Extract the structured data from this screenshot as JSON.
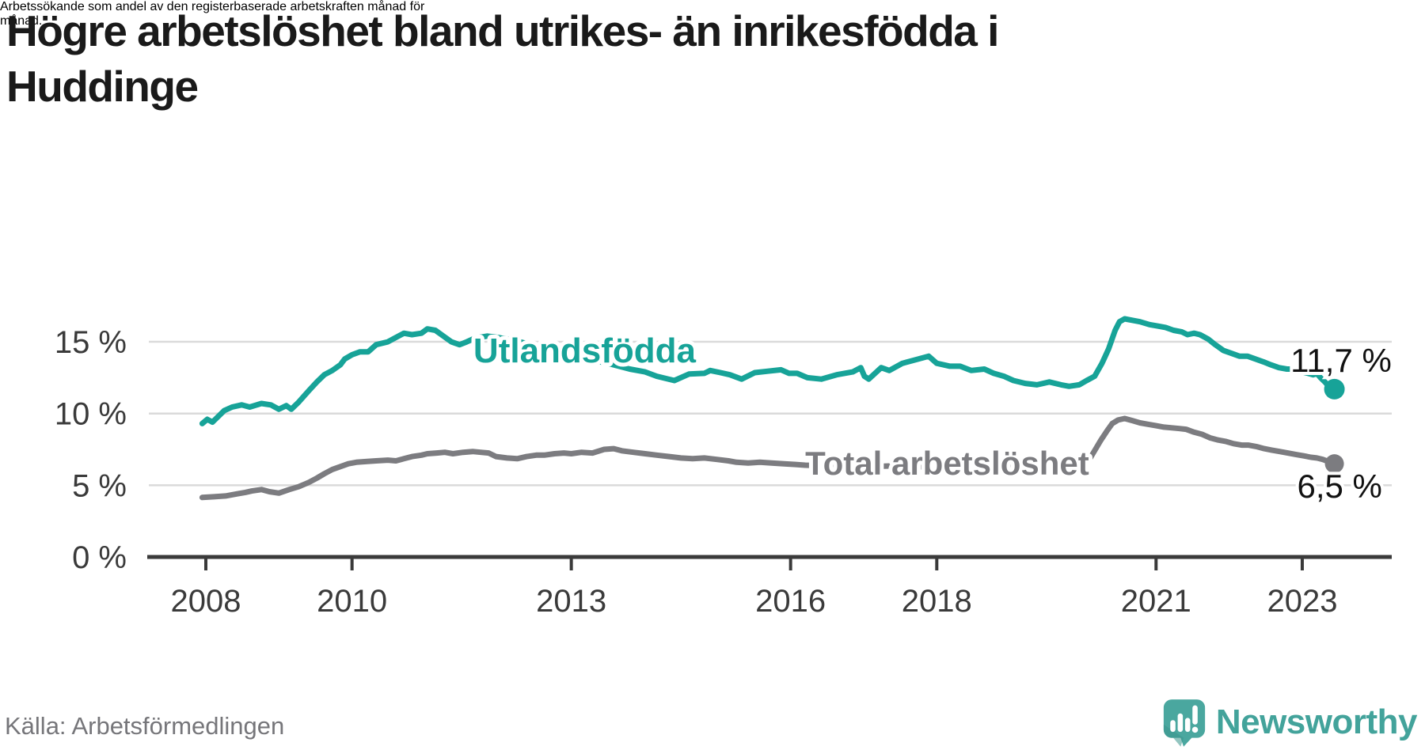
{
  "header": {
    "title_line1": "Högre arbetslöshet bland utrikes- än inrikesfödda i",
    "title_line2": "Huddinge",
    "subtitle_line1": "Arbetssökande som andel av den registerbaserade arbetskraften månad för",
    "subtitle_line2": "månad."
  },
  "footer": {
    "source": "Källa: Arbetsförmedlingen",
    "brand": "Newsworthy"
  },
  "chart_data": {
    "type": "line",
    "title": "Högre arbetslöshet bland utrikes- än inrikesfödda i Huddinge",
    "subtitle": "Arbetssökande som andel av den registerbaserade arbetskraften månad för månad.",
    "grid": "horizontal-only",
    "legend_position": "inline-labels",
    "x_axis": {
      "range": [
        2007.2,
        2024.2
      ],
      "ticks": [
        2008,
        2010,
        2013,
        2016,
        2018,
        2021,
        2023
      ],
      "tick_labels": [
        "2008",
        "2010",
        "2013",
        "2016",
        "2018",
        "2021",
        "2023"
      ]
    },
    "y_axis": {
      "range": [
        0,
        18.6
      ],
      "ticks": [
        0,
        5,
        10,
        15
      ],
      "tick_labels": [
        "0 %",
        "5 %",
        "10 %",
        "15 %"
      ]
    },
    "colors": {
      "utlandsfodda": "#17a398",
      "total": "#7c7c80",
      "axis": "#3a3a3a",
      "grid": "#dadada",
      "value_label": "#111111"
    },
    "series": [
      {
        "name": "Utlandsfödda",
        "color": "#17a398",
        "end_value": 11.7,
        "end_label": "11,7 %",
        "points": [
          [
            2007.95,
            9.3
          ],
          [
            2008.02,
            9.6
          ],
          [
            2008.09,
            9.4
          ],
          [
            2008.25,
            10.2
          ],
          [
            2008.36,
            10.45
          ],
          [
            2008.49,
            10.6
          ],
          [
            2008.6,
            10.45
          ],
          [
            2008.76,
            10.7
          ],
          [
            2008.89,
            10.6
          ],
          [
            2009.0,
            10.3
          ],
          [
            2009.1,
            10.55
          ],
          [
            2009.17,
            10.3
          ],
          [
            2009.27,
            10.8
          ],
          [
            2009.41,
            11.6
          ],
          [
            2009.52,
            12.2
          ],
          [
            2009.62,
            12.7
          ],
          [
            2009.73,
            13.0
          ],
          [
            2009.84,
            13.4
          ],
          [
            2009.9,
            13.8
          ],
          [
            2010.0,
            14.1
          ],
          [
            2010.11,
            14.3
          ],
          [
            2010.22,
            14.3
          ],
          [
            2010.33,
            14.8
          ],
          [
            2010.49,
            15.0
          ],
          [
            2010.6,
            15.3
          ],
          [
            2010.71,
            15.6
          ],
          [
            2010.82,
            15.5
          ],
          [
            2010.95,
            15.6
          ],
          [
            2011.03,
            15.9
          ],
          [
            2011.14,
            15.8
          ],
          [
            2011.25,
            15.4
          ],
          [
            2011.36,
            15.0
          ],
          [
            2011.47,
            14.8
          ],
          [
            2011.57,
            15.0
          ],
          [
            2011.68,
            15.25
          ],
          [
            2011.85,
            15.4
          ],
          [
            2012.0,
            15.3
          ],
          [
            2012.3,
            15.0
          ],
          [
            2012.6,
            14.6
          ],
          [
            2012.9,
            14.2
          ],
          [
            2013.2,
            13.8
          ],
          [
            2013.5,
            13.5
          ],
          [
            2013.8,
            13.1
          ],
          [
            2014.01,
            12.9
          ],
          [
            2014.17,
            12.6
          ],
          [
            2014.41,
            12.3
          ],
          [
            2014.61,
            12.75
          ],
          [
            2014.82,
            12.8
          ],
          [
            2014.9,
            13.0
          ],
          [
            2015.04,
            12.85
          ],
          [
            2015.17,
            12.7
          ],
          [
            2015.33,
            12.4
          ],
          [
            2015.51,
            12.85
          ],
          [
            2015.69,
            12.95
          ],
          [
            2015.87,
            13.05
          ],
          [
            2015.98,
            12.8
          ],
          [
            2016.09,
            12.8
          ],
          [
            2016.23,
            12.5
          ],
          [
            2016.42,
            12.4
          ],
          [
            2016.63,
            12.7
          ],
          [
            2016.85,
            12.9
          ],
          [
            2016.96,
            13.2
          ],
          [
            2017.01,
            12.6
          ],
          [
            2017.07,
            12.4
          ],
          [
            2017.24,
            13.2
          ],
          [
            2017.35,
            13.0
          ],
          [
            2017.53,
            13.5
          ],
          [
            2017.75,
            13.8
          ],
          [
            2017.89,
            14.0
          ],
          [
            2018.0,
            13.5
          ],
          [
            2018.18,
            13.3
          ],
          [
            2018.32,
            13.3
          ],
          [
            2018.47,
            13.0
          ],
          [
            2018.65,
            13.1
          ],
          [
            2018.78,
            12.8
          ],
          [
            2018.92,
            12.6
          ],
          [
            2019.05,
            12.3
          ],
          [
            2019.21,
            12.1
          ],
          [
            2019.37,
            12.0
          ],
          [
            2019.54,
            12.2
          ],
          [
            2019.7,
            12.0
          ],
          [
            2019.81,
            11.9
          ],
          [
            2019.95,
            12.0
          ],
          [
            2020.05,
            12.3
          ],
          [
            2020.16,
            12.6
          ],
          [
            2020.26,
            13.5
          ],
          [
            2020.35,
            14.5
          ],
          [
            2020.44,
            15.8
          ],
          [
            2020.5,
            16.4
          ],
          [
            2020.57,
            16.6
          ],
          [
            2020.68,
            16.5
          ],
          [
            2020.78,
            16.4
          ],
          [
            2020.91,
            16.2
          ],
          [
            2021.02,
            16.1
          ],
          [
            2021.13,
            16.0
          ],
          [
            2021.24,
            15.8
          ],
          [
            2021.35,
            15.7
          ],
          [
            2021.43,
            15.5
          ],
          [
            2021.52,
            15.6
          ],
          [
            2021.6,
            15.5
          ],
          [
            2021.71,
            15.2
          ],
          [
            2021.81,
            14.8
          ],
          [
            2021.92,
            14.4
          ],
          [
            2022.03,
            14.2
          ],
          [
            2022.14,
            14.0
          ],
          [
            2022.25,
            14.0
          ],
          [
            2022.36,
            13.8
          ],
          [
            2022.47,
            13.6
          ],
          [
            2022.57,
            13.4
          ],
          [
            2022.68,
            13.2
          ],
          [
            2022.79,
            13.1
          ],
          [
            2022.9,
            13.1
          ],
          [
            2023.0,
            12.9
          ],
          [
            2023.08,
            12.8
          ],
          [
            2023.15,
            12.7
          ],
          [
            2023.2,
            12.8
          ],
          [
            2023.25,
            12.5
          ],
          [
            2023.31,
            12.2
          ],
          [
            2023.36,
            11.9
          ],
          [
            2023.44,
            11.7
          ]
        ]
      },
      {
        "name": "Total arbetslöshet",
        "color": "#7c7c80",
        "end_value": 6.5,
        "end_label": "6,5 %",
        "points": [
          [
            2007.95,
            4.15
          ],
          [
            2008.11,
            4.2
          ],
          [
            2008.27,
            4.25
          ],
          [
            2008.43,
            4.4
          ],
          [
            2008.54,
            4.5
          ],
          [
            2008.63,
            4.6
          ],
          [
            2008.76,
            4.7
          ],
          [
            2008.87,
            4.55
          ],
          [
            2009.0,
            4.45
          ],
          [
            2009.14,
            4.7
          ],
          [
            2009.27,
            4.9
          ],
          [
            2009.41,
            5.2
          ],
          [
            2009.52,
            5.5
          ],
          [
            2009.62,
            5.8
          ],
          [
            2009.73,
            6.1
          ],
          [
            2009.84,
            6.3
          ],
          [
            2009.95,
            6.5
          ],
          [
            2010.06,
            6.6
          ],
          [
            2010.19,
            6.65
          ],
          [
            2010.33,
            6.7
          ],
          [
            2010.49,
            6.75
          ],
          [
            2010.6,
            6.7
          ],
          [
            2010.71,
            6.85
          ],
          [
            2010.82,
            7.0
          ],
          [
            2010.95,
            7.1
          ],
          [
            2011.03,
            7.2
          ],
          [
            2011.16,
            7.25
          ],
          [
            2011.27,
            7.3
          ],
          [
            2011.38,
            7.2
          ],
          [
            2011.52,
            7.3
          ],
          [
            2011.65,
            7.35
          ],
          [
            2011.76,
            7.3
          ],
          [
            2011.87,
            7.25
          ],
          [
            2011.97,
            7.0
          ],
          [
            2012.12,
            6.9
          ],
          [
            2012.26,
            6.85
          ],
          [
            2012.39,
            7.0
          ],
          [
            2012.52,
            7.1
          ],
          [
            2012.63,
            7.1
          ],
          [
            2012.77,
            7.2
          ],
          [
            2012.9,
            7.25
          ],
          [
            2013.0,
            7.2
          ],
          [
            2013.14,
            7.3
          ],
          [
            2013.29,
            7.25
          ],
          [
            2013.45,
            7.5
          ],
          [
            2013.58,
            7.55
          ],
          [
            2013.69,
            7.4
          ],
          [
            2013.85,
            7.3
          ],
          [
            2014.01,
            7.2
          ],
          [
            2014.17,
            7.1
          ],
          [
            2014.34,
            7.0
          ],
          [
            2014.5,
            6.9
          ],
          [
            2014.66,
            6.85
          ],
          [
            2014.82,
            6.9
          ],
          [
            2014.99,
            6.8
          ],
          [
            2015.15,
            6.7
          ],
          [
            2015.26,
            6.6
          ],
          [
            2015.42,
            6.55
          ],
          [
            2015.58,
            6.6
          ],
          [
            2015.74,
            6.55
          ],
          [
            2015.91,
            6.5
          ],
          [
            2016.07,
            6.45
          ],
          [
            2016.2,
            6.4
          ],
          [
            2016.5,
            6.35
          ],
          [
            2016.8,
            6.3
          ],
          [
            2017.1,
            6.3
          ],
          [
            2017.4,
            6.35
          ],
          [
            2017.7,
            6.3
          ],
          [
            2018.0,
            6.25
          ],
          [
            2018.3,
            6.3
          ],
          [
            2018.6,
            6.3
          ],
          [
            2018.9,
            6.35
          ],
          [
            2019.2,
            6.4
          ],
          [
            2019.5,
            6.45
          ],
          [
            2019.8,
            6.4
          ],
          [
            2020.0,
            6.5
          ],
          [
            2020.1,
            6.9
          ],
          [
            2020.24,
            8.1
          ],
          [
            2020.33,
            8.8
          ],
          [
            2020.4,
            9.3
          ],
          [
            2020.48,
            9.55
          ],
          [
            2020.57,
            9.65
          ],
          [
            2020.68,
            9.5
          ],
          [
            2020.78,
            9.35
          ],
          [
            2020.89,
            9.25
          ],
          [
            2021.0,
            9.15
          ],
          [
            2021.11,
            9.05
          ],
          [
            2021.22,
            9.0
          ],
          [
            2021.32,
            8.95
          ],
          [
            2021.41,
            8.9
          ],
          [
            2021.52,
            8.7
          ],
          [
            2021.63,
            8.55
          ],
          [
            2021.74,
            8.3
          ],
          [
            2021.85,
            8.15
          ],
          [
            2021.96,
            8.05
          ],
          [
            2022.06,
            7.9
          ],
          [
            2022.17,
            7.8
          ],
          [
            2022.26,
            7.8
          ],
          [
            2022.37,
            7.7
          ],
          [
            2022.48,
            7.55
          ],
          [
            2022.58,
            7.45
          ],
          [
            2022.69,
            7.35
          ],
          [
            2022.8,
            7.25
          ],
          [
            2022.91,
            7.15
          ],
          [
            2023.02,
            7.05
          ],
          [
            2023.12,
            6.95
          ],
          [
            2023.2,
            6.9
          ],
          [
            2023.28,
            6.8
          ],
          [
            2023.36,
            6.65
          ],
          [
            2023.44,
            6.5
          ]
        ]
      }
    ],
    "series_labels": [
      {
        "text": "Utlandsfödda",
        "x": 2011.66,
        "y": 13.57,
        "color": "#17a398",
        "size": 44
      },
      {
        "text": "Total arbetslöshet",
        "x": 2016.2,
        "y": 5.74,
        "color": "#7c7c80",
        "size": 42
      }
    ],
    "value_labels": [
      {
        "text": "11,7 %",
        "x": 2022.84,
        "y": 12.9,
        "color": "#111111",
        "size": 42
      },
      {
        "text": "6,5 %",
        "x": 2022.93,
        "y": 4.14,
        "color": "#111111",
        "size": 42
      }
    ]
  }
}
